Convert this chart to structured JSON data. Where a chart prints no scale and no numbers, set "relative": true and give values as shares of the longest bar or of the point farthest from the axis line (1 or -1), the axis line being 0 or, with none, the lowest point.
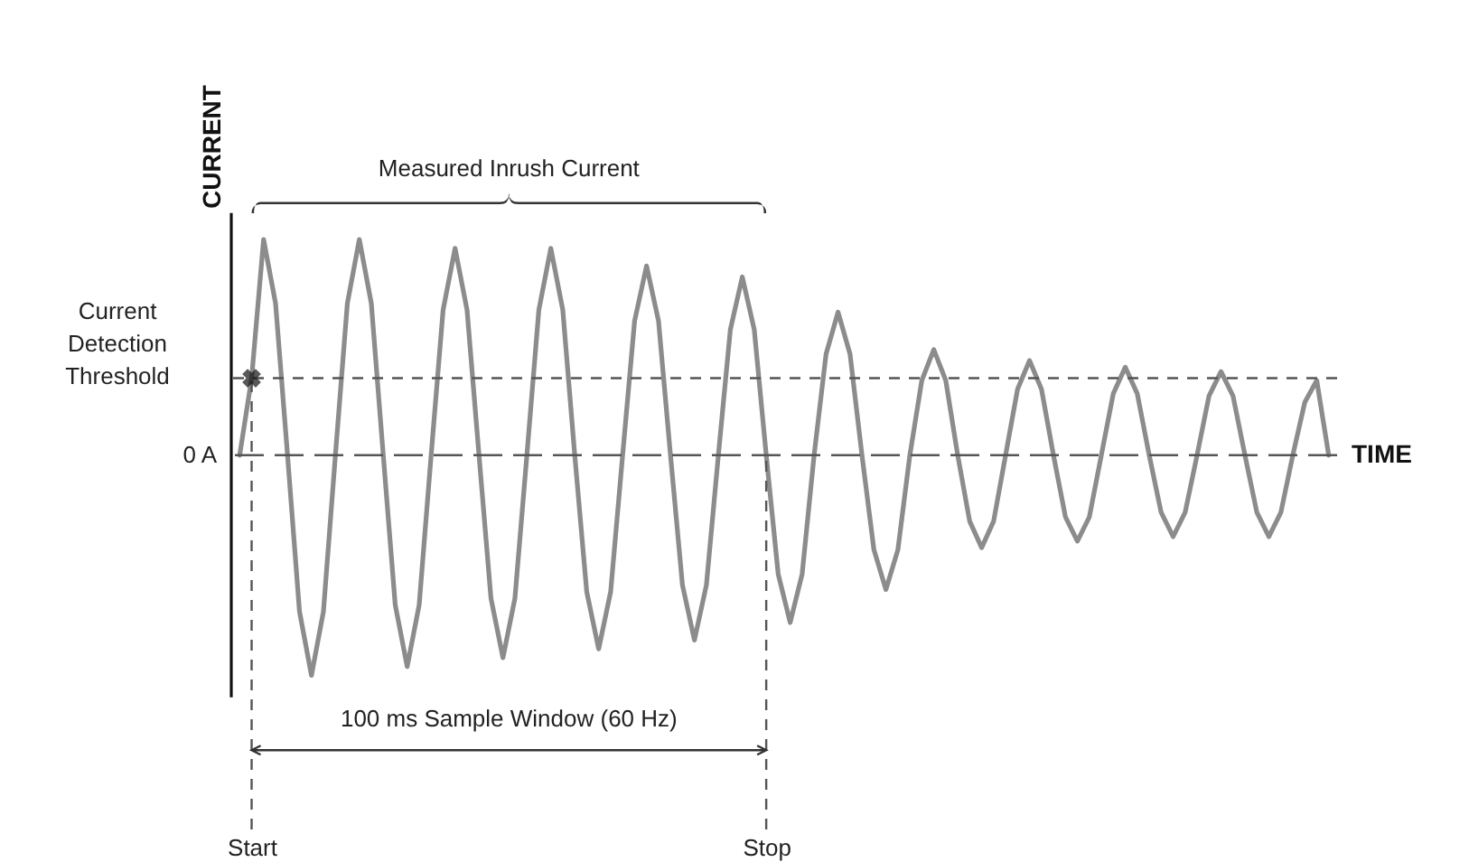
{
  "chart_data": {
    "type": "line",
    "relative": true,
    "xlabel": "TIME",
    "ylabel": "CURRENT",
    "categories": [
      null,
      "Start",
      null,
      null,
      null,
      null,
      null,
      null,
      null,
      null,
      null,
      null,
      null,
      null,
      null,
      null,
      null,
      null,
      null,
      null,
      null,
      null,
      null,
      null,
      null,
      null,
      null,
      null,
      null,
      null,
      null,
      null,
      null,
      null,
      null,
      null,
      null,
      null,
      null,
      null,
      null,
      null,
      null,
      null,
      "Stop",
      null,
      null,
      null,
      null,
      null,
      null,
      null,
      null,
      null,
      null,
      null,
      null,
      null,
      null,
      null,
      null,
      null,
      null,
      null,
      null,
      null,
      null,
      null,
      null,
      null,
      null,
      null,
      null,
      null,
      null,
      null,
      null,
      null,
      null,
      null,
      null,
      null,
      null,
      null,
      null,
      null,
      null,
      null,
      null,
      null,
      null,
      null
    ],
    "series": [
      {
        "color": "#8c8c8c",
        "values": [
          0,
          0.35,
          0.98,
          0.69,
          0,
          -0.71,
          -1,
          -0.71,
          0,
          0.69,
          0.98,
          0.69,
          0,
          -0.68,
          -0.96,
          -0.68,
          0,
          0.66,
          0.94,
          0.66,
          0,
          -0.65,
          -0.92,
          -0.65,
          0,
          0.66,
          0.94,
          0.66,
          0,
          -0.62,
          -0.88,
          -0.62,
          0,
          0.61,
          0.86,
          0.61,
          0,
          -0.59,
          -0.84,
          -0.59,
          0,
          0.57,
          0.81,
          0.57,
          0,
          -0.54,
          -0.76,
          -0.54,
          0,
          0.46,
          0.65,
          0.46,
          0,
          -0.43,
          -0.61,
          -0.43,
          0,
          0.34,
          0.48,
          0.34,
          0,
          -0.3,
          -0.42,
          -0.3,
          0,
          0.3,
          0.43,
          0.3,
          0,
          -0.28,
          -0.39,
          -0.28,
          0,
          0.28,
          0.4,
          0.28,
          0,
          -0.26,
          -0.37,
          -0.26,
          0,
          0.27,
          0.38,
          0.27,
          0,
          -0.26,
          -0.37,
          -0.26,
          0,
          0.24,
          0.34,
          0
        ]
      }
    ],
    "ref_lines": [
      {
        "axis": "y",
        "value": 0,
        "label": "0 A",
        "line_style": "dashed",
        "color": "#555555"
      },
      {
        "axis": "y",
        "value": 0.35,
        "label": "Current Detection Threshold",
        "line_style": "dashed",
        "color": "#555555"
      },
      {
        "axis": "x",
        "value": "Start",
        "line_style": "dashed",
        "color": "#555555"
      },
      {
        "axis": "x",
        "value": "Stop",
        "line_style": "dashed",
        "color": "#555555"
      }
    ],
    "annotations": [
      "Measured Inrush Current",
      "100 ms Sample Window (60 Hz)"
    ]
  }
}
